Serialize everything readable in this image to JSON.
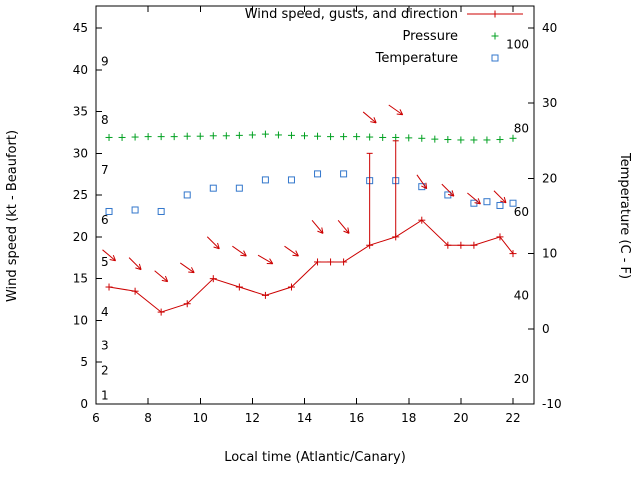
{
  "chart_data": {
    "type": "line",
    "xlabel": "Local time (Atlantic/Canary)",
    "ylabel_left": "Wind speed (kt - Beaufort)",
    "ylabel_right": "Temperature (C - F)",
    "x_range": [
      6,
      22.8
    ],
    "x_ticks": [
      6,
      8,
      10,
      12,
      14,
      16,
      18,
      20,
      22
    ],
    "y_left_range": [
      0,
      45
    ],
    "y_left_ticks": [
      0,
      5,
      10,
      15,
      20,
      25,
      30,
      35,
      40,
      45
    ],
    "y_right_range": [
      -10,
      40
    ],
    "y_right_ticks": [
      -10,
      0,
      10,
      20,
      30,
      40
    ],
    "grid": false,
    "legend_position": "top-right-inside",
    "colors": {
      "wind": "#cc0000",
      "pressure": "#00a020",
      "temperature": "#3377cc",
      "axis": "#000000"
    },
    "beaufort_labels": [
      {
        "label": "1",
        "kt": 1
      },
      {
        "label": "2",
        "kt": 4
      },
      {
        "label": "3",
        "kt": 7
      },
      {
        "label": "4",
        "kt": 11
      },
      {
        "label": "5",
        "kt": 17
      },
      {
        "label": "6",
        "kt": 22
      },
      {
        "label": "7",
        "kt": 28
      },
      {
        "label": "8",
        "kt": 34
      },
      {
        "label": "9",
        "kt": 41
      }
    ],
    "fahrenheit_labels": [
      {
        "label": "20",
        "f": 20
      },
      {
        "label": "40",
        "f": 40
      },
      {
        "label": "60",
        "f": 60
      },
      {
        "label": "80",
        "f": 80
      },
      {
        "label": "100",
        "f": 100
      }
    ],
    "series": {
      "wind": {
        "name": "Wind speed, gusts, and direction",
        "axis": "left",
        "marker": "plus",
        "x": [
          6.5,
          7.5,
          8.5,
          9.5,
          10.5,
          11.5,
          12.5,
          13.5,
          14.5,
          15,
          15.5,
          16.5,
          17.5,
          18.5,
          19.5,
          20,
          20.5,
          21.5,
          22
        ],
        "kt": [
          14,
          13.5,
          11,
          12,
          15,
          14,
          13,
          14,
          17,
          17,
          17,
          19,
          20,
          22,
          19,
          19,
          19,
          20,
          18
        ],
        "gusts": [
          {
            "x": 16.5,
            "from": 19,
            "to": 30
          },
          {
            "x": 17.5,
            "from": 20,
            "to": 31.5
          }
        ],
        "arrows": [
          {
            "x": 6.5,
            "kt": 17.8,
            "angle": 40
          },
          {
            "x": 7.5,
            "kt": 16.8,
            "angle": 45
          },
          {
            "x": 8.5,
            "kt": 15.3,
            "angle": 40
          },
          {
            "x": 9.5,
            "kt": 16.3,
            "angle": 35
          },
          {
            "x": 10.5,
            "kt": 19.3,
            "angle": 45
          },
          {
            "x": 11.5,
            "kt": 18.3,
            "angle": 35
          },
          {
            "x": 12.5,
            "kt": 17.3,
            "angle": 30
          },
          {
            "x": 13.5,
            "kt": 18.3,
            "angle": 35
          },
          {
            "x": 14.5,
            "kt": 21.2,
            "angle": 50
          },
          {
            "x": 15.5,
            "kt": 21.2,
            "angle": 50
          },
          {
            "x": 16.5,
            "kt": 34.3,
            "angle": 40
          },
          {
            "x": 17.5,
            "kt": 35.2,
            "angle": 35
          },
          {
            "x": 18.5,
            "kt": 26.6,
            "angle": 55
          },
          {
            "x": 19.5,
            "kt": 25.6,
            "angle": 45
          },
          {
            "x": 20.5,
            "kt": 24.6,
            "angle": 40
          },
          {
            "x": 21.5,
            "kt": 24.8,
            "angle": 45
          }
        ]
      },
      "pressure": {
        "name": "Pressure",
        "axis": "left-unlabeled",
        "marker": "plus",
        "x": [
          6.5,
          7,
          7.5,
          8,
          8.5,
          9,
          9.5,
          10,
          10.5,
          11,
          11.5,
          12,
          12.5,
          13,
          13.5,
          14,
          14.5,
          15,
          15.5,
          16,
          16.5,
          17,
          17.5,
          18,
          18.5,
          19,
          19.5,
          20,
          20.5,
          21,
          21.5,
          22
        ],
        "y_left_units": [
          31.9,
          31.9,
          31.95,
          32,
          32,
          32,
          32.05,
          32.05,
          32.1,
          32.1,
          32.15,
          32.2,
          32.3,
          32.2,
          32.15,
          32.1,
          32.05,
          32,
          32,
          32,
          31.95,
          31.9,
          31.9,
          31.85,
          31.8,
          31.7,
          31.65,
          31.6,
          31.6,
          31.6,
          31.65,
          31.8
        ]
      },
      "temperature": {
        "name": "Temperature",
        "axis": "right",
        "marker": "open-square",
        "x": [
          6.5,
          7.5,
          8.5,
          9.5,
          10.5,
          11.5,
          12.5,
          13.5,
          14.5,
          15.5,
          16.5,
          17.5,
          18.5,
          19.5,
          20.5,
          21,
          21.5,
          22
        ],
        "celsius": [
          15.6,
          15.8,
          15.6,
          17.8,
          18.7,
          18.7,
          19.8,
          19.8,
          20.6,
          20.6,
          19.7,
          19.7,
          18.9,
          17.8,
          16.7,
          16.9,
          16.4,
          16.7
        ]
      }
    }
  }
}
